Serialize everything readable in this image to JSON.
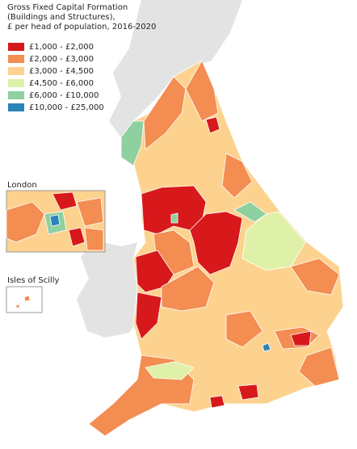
{
  "title": [
    "Gross Fixed Capital Formation",
    "(Buildings and Structures),",
    "£ per head of population, 2016-2020"
  ],
  "legend": [
    {
      "label": "£1,000 - £2,000",
      "color": "#d7191c"
    },
    {
      "label": "£2,000 - £3,000",
      "color": "#f38d52"
    },
    {
      "label": "£3,000 - £4,500",
      "color": "#fdd28e"
    },
    {
      "label": "£4,500 - £6,000",
      "color": "#dff1a8"
    },
    {
      "label": "£6,000 - £10,000",
      "color": "#8fd0a0"
    },
    {
      "label": "£10,000 - £25,000",
      "color": "#2b83ba"
    }
  ],
  "insets": [
    "London",
    "Isles of Scilly"
  ]
}
